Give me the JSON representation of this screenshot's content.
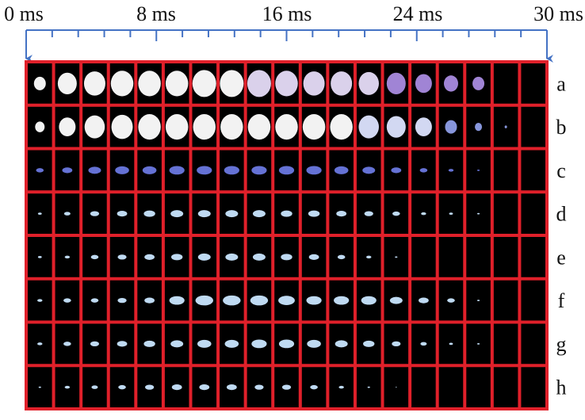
{
  "time_axis": {
    "labels": [
      "0 ms",
      "8 ms",
      "16 ms",
      "24 ms",
      "30 ms"
    ]
  },
  "rows": {
    "labels": [
      "a",
      "b",
      "c",
      "d",
      "e",
      "f",
      "g",
      "h"
    ]
  }
}
